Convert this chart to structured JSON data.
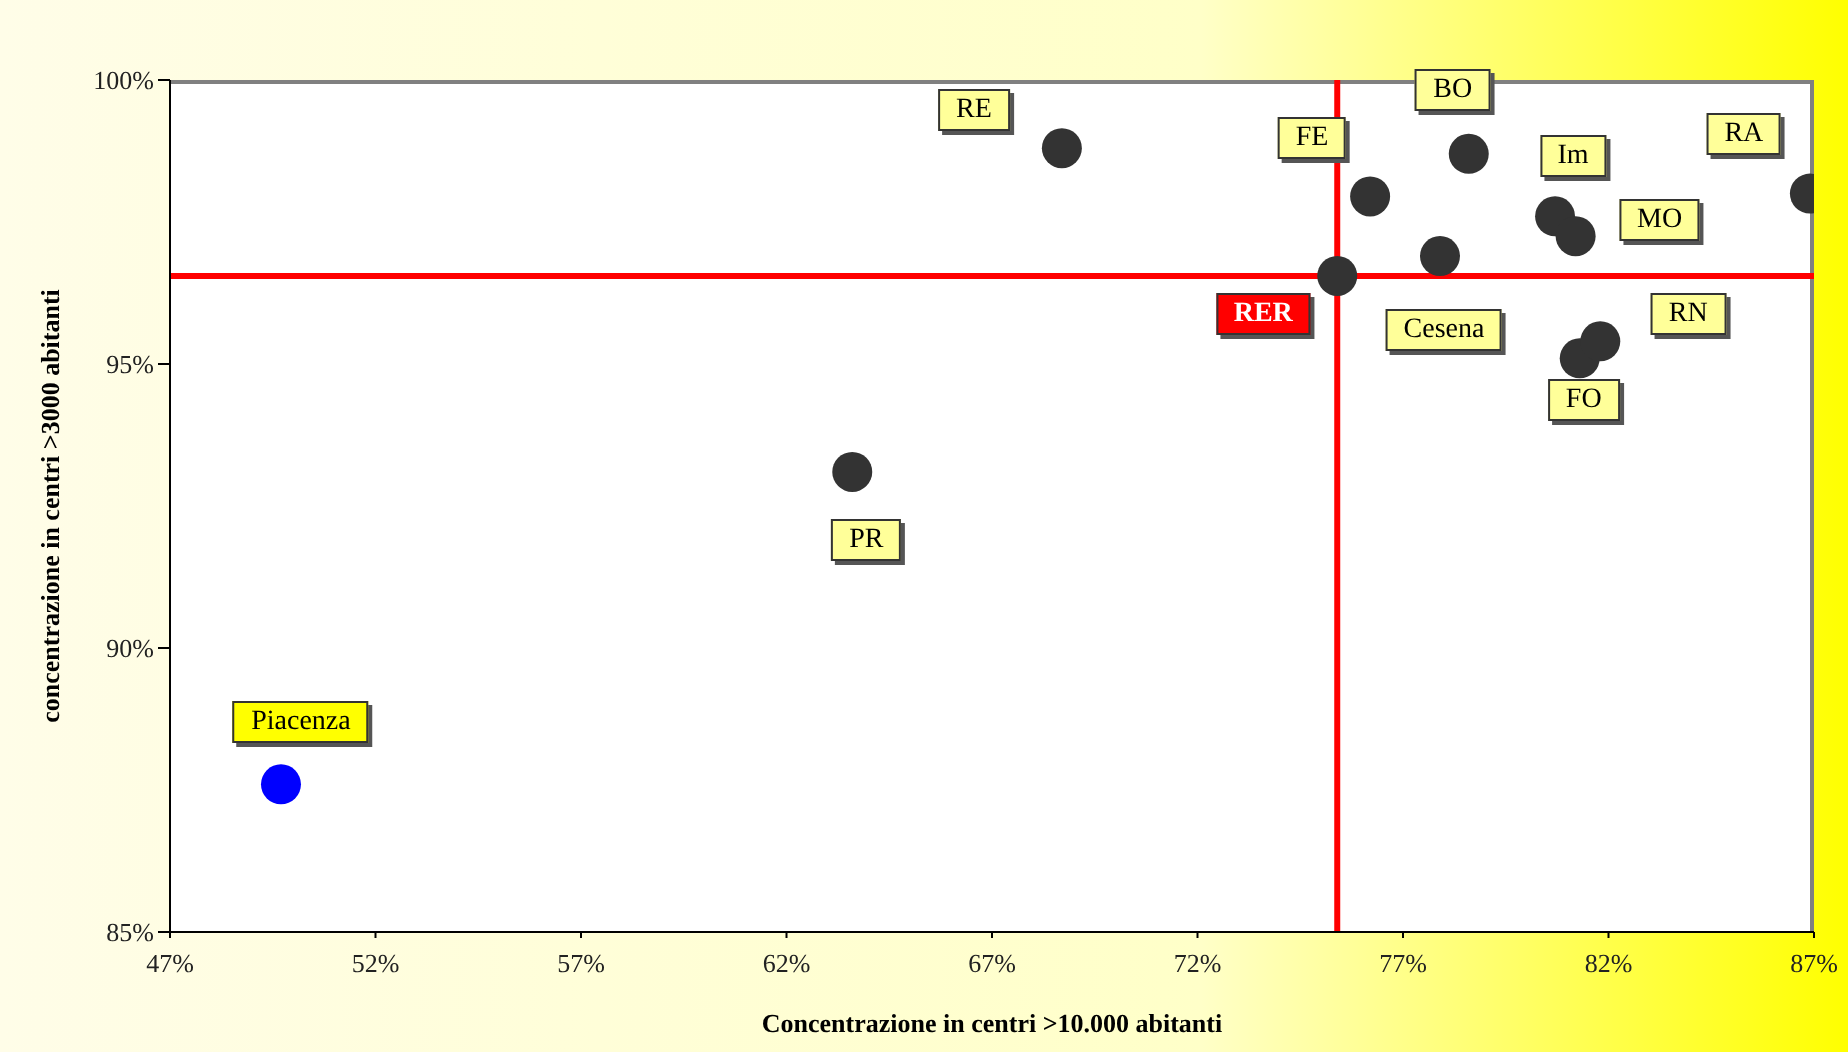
{
  "chart_data": {
    "type": "scatter",
    "xlabel": "Concentrazione in centri >10.000 abitanti",
    "ylabel": "concentrazione in centri >3000 abitanti",
    "xlim": [
      47,
      87
    ],
    "ylim": [
      85,
      100
    ],
    "xticks": [
      {
        "value": 47,
        "label": "47%"
      },
      {
        "value": 52,
        "label": "52%"
      },
      {
        "value": 57,
        "label": "57%"
      },
      {
        "value": 62,
        "label": "62%"
      },
      {
        "value": 67,
        "label": "67%"
      },
      {
        "value": 72,
        "label": "72%"
      },
      {
        "value": 77,
        "label": "77%"
      },
      {
        "value": 82,
        "label": "82%"
      },
      {
        "value": 87,
        "label": "87%"
      }
    ],
    "yticks": [
      {
        "value": 85,
        "label": "85%"
      },
      {
        "value": 90,
        "label": "90%"
      },
      {
        "value": 95,
        "label": "95%"
      },
      {
        "value": 100,
        "label": "100%"
      }
    ],
    "series": [
      {
        "color": "#333333",
        "x": [
          63.6,
          68.7,
          75.4,
          76.2,
          77.9,
          78.6,
          80.7,
          81.2,
          81.3,
          81.8,
          86.9
        ],
        "values": [
          93.1,
          98.8,
          96.55,
          97.95,
          96.9,
          98.7,
          97.6,
          97.25,
          95.1,
          95.4,
          98.0
        ]
      },
      {
        "color": "#0000ff",
        "x": [
          49.7
        ],
        "values": [
          87.6
        ]
      }
    ],
    "ref_lines": [
      {
        "axis": "x",
        "value": 75.4,
        "color": "#ff0000"
      },
      {
        "axis": "y",
        "value": 96.55,
        "color": "#ff0000"
      }
    ],
    "annotations": [
      {
        "text": "Piacenza",
        "x": 49.7,
        "y": 87.6
      },
      {
        "text": "PR",
        "x": 63.6,
        "y": 93.1
      },
      {
        "text": "RE",
        "x": 68.7,
        "y": 98.8
      },
      {
        "text": "RER",
        "x": 75.4,
        "y": 96.55
      },
      {
        "text": "FE",
        "x": 76.2,
        "y": 97.95
      },
      {
        "text": "Cesena",
        "x": 77.9,
        "y": 96.9
      },
      {
        "text": "BO",
        "x": 78.6,
        "y": 98.7
      },
      {
        "text": "Im",
        "x": 80.7,
        "y": 97.6
      },
      {
        "text": "MO",
        "x": 81.2,
        "y": 97.25
      },
      {
        "text": "FO",
        "x": 81.3,
        "y": 95.1
      },
      {
        "text": "RN",
        "x": 81.8,
        "y": 95.4
      },
      {
        "text": "RA",
        "x": 86.9,
        "y": 98.0
      }
    ],
    "marker": "circle",
    "grid": false,
    "legend": false
  }
}
